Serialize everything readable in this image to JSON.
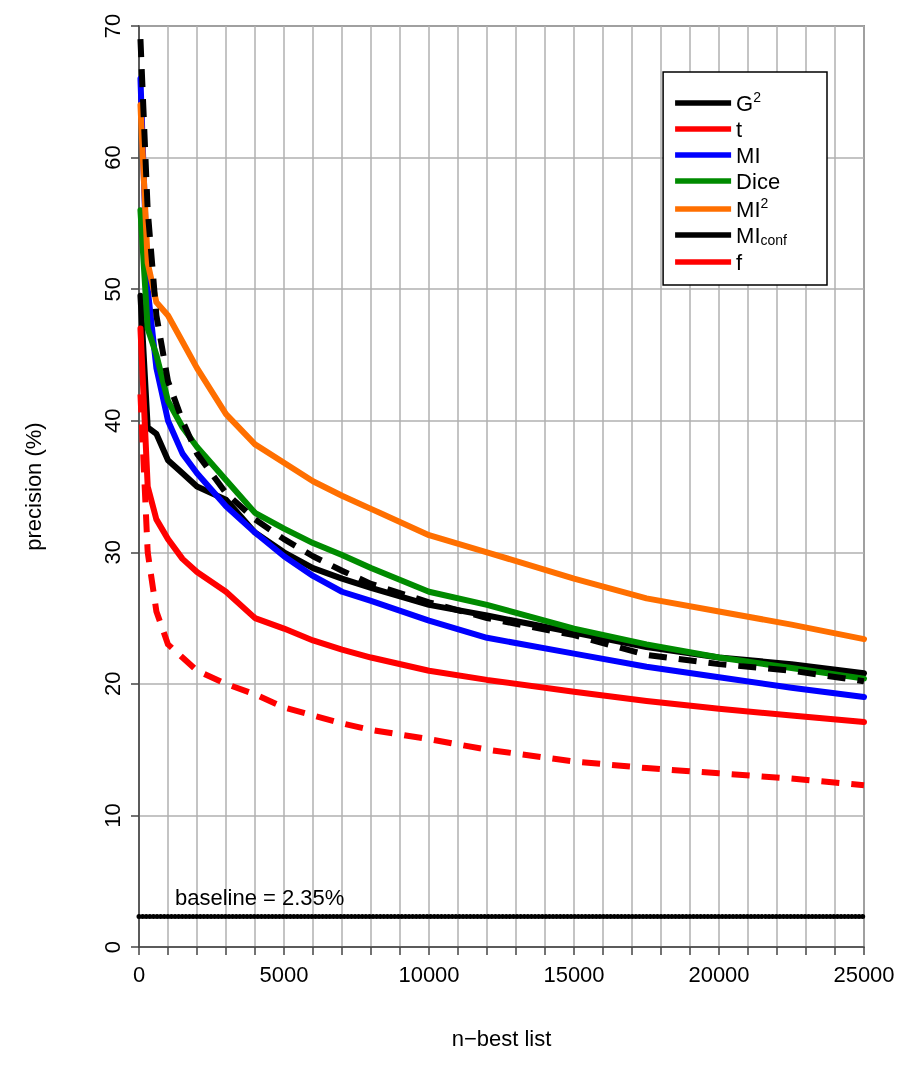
{
  "chart_data": {
    "type": "line",
    "xlabel": "n−best list",
    "ylabel": "precision (%)",
    "xlim": [
      0,
      25000
    ],
    "ylim": [
      0,
      70
    ],
    "xticks": [
      0,
      {
        "value": 1000,
        "label": null
      },
      {
        "value": 2000,
        "label": null
      },
      {
        "value": 3000,
        "label": null
      },
      {
        "value": 4000,
        "label": null
      },
      5000,
      {
        "value": 6000,
        "label": null
      },
      {
        "value": 7000,
        "label": null
      },
      {
        "value": 8000,
        "label": null
      },
      {
        "value": 9000,
        "label": null
      },
      10000,
      {
        "value": 11000,
        "label": null
      },
      {
        "value": 12000,
        "label": null
      },
      {
        "value": 13000,
        "label": null
      },
      {
        "value": 14000,
        "label": null
      },
      15000,
      {
        "value": 16000,
        "label": null
      },
      {
        "value": 17000,
        "label": null
      },
      {
        "value": 18000,
        "label": null
      },
      {
        "value": 19000,
        "label": null
      },
      20000,
      {
        "value": 21000,
        "label": null
      },
      {
        "value": 22000,
        "label": null
      },
      {
        "value": 23000,
        "label": null
      },
      {
        "value": 24000,
        "label": null
      },
      25000
    ],
    "yticks": [
      0,
      10,
      20,
      30,
      40,
      50,
      60,
      70
    ],
    "grid": true,
    "legend": "top right",
    "marker": "none",
    "x": [
      50,
      300,
      600,
      1000,
      1500,
      2000,
      3000,
      4000,
      5000,
      6000,
      7000,
      8000,
      10000,
      12000,
      15000,
      17500,
      20000,
      22500,
      25000
    ],
    "series": [
      {
        "name": "G$^{2}$",
        "color": "#000000",
        "line_style": "solid",
        "values": [
          49.5,
          39.5,
          39,
          37,
          36,
          35,
          34,
          31.5,
          30,
          28.8,
          28,
          27.3,
          26,
          25.2,
          23.9,
          22.8,
          22,
          21.5,
          20.8
        ]
      },
      {
        "name": "t",
        "color": "#ff0000",
        "line_style": "solid",
        "values": [
          47,
          35,
          32.5,
          31,
          29.5,
          28.5,
          27,
          25,
          24.2,
          23.3,
          22.6,
          22,
          21,
          20.3,
          19.4,
          18.7,
          18.1,
          17.6,
          17.1
        ]
      },
      {
        "name": "MI",
        "color": "#0000ff",
        "line_style": "solid",
        "values": [
          66,
          50,
          44,
          40,
          37.5,
          36,
          33.5,
          31.5,
          29.7,
          28.2,
          27,
          26.3,
          24.8,
          23.5,
          22.3,
          21.3,
          20.5,
          19.7,
          19
        ]
      },
      {
        "name": "Dice",
        "color": "#008b00",
        "line_style": "solid",
        "values": [
          56,
          47,
          45,
          41.5,
          39.5,
          38,
          35.5,
          33,
          31.8,
          30.7,
          29.8,
          28.8,
          27,
          26,
          24.2,
          23,
          22,
          21.2,
          20.4
        ]
      },
      {
        "name": "MI$^{2}$",
        "color": "#ff6f00",
        "line_style": "solid",
        "values": [
          64,
          52,
          49,
          48,
          46,
          44,
          40.5,
          38.2,
          36.8,
          35.4,
          34.3,
          33.3,
          31.3,
          30,
          28,
          26.5,
          25.5,
          24.5,
          23.4
        ]
      },
      {
        "name": "MI$_{conf}$",
        "color": "#000000",
        "line_style": "dashed",
        "values": [
          69,
          56,
          48,
          43,
          40,
          37.5,
          34.5,
          32.5,
          31,
          29.7,
          28.6,
          27.6,
          26.2,
          25,
          23.7,
          22.2,
          21.5,
          21,
          20.2
        ]
      },
      {
        "name": "f",
        "color": "#ff0000",
        "line_style": "dashed",
        "values": [
          42,
          30,
          25.5,
          23,
          22,
          21,
          20,
          19.2,
          18.2,
          17.6,
          17,
          16.5,
          15.8,
          15,
          14.1,
          13.6,
          13.2,
          12.8,
          12.3
        ]
      }
    ],
    "ref_lines": [
      {
        "axis": "y",
        "value": 2.35,
        "label": "baseline = 2.35%",
        "color": "#000000",
        "line_style": "dotted"
      }
    ]
  }
}
